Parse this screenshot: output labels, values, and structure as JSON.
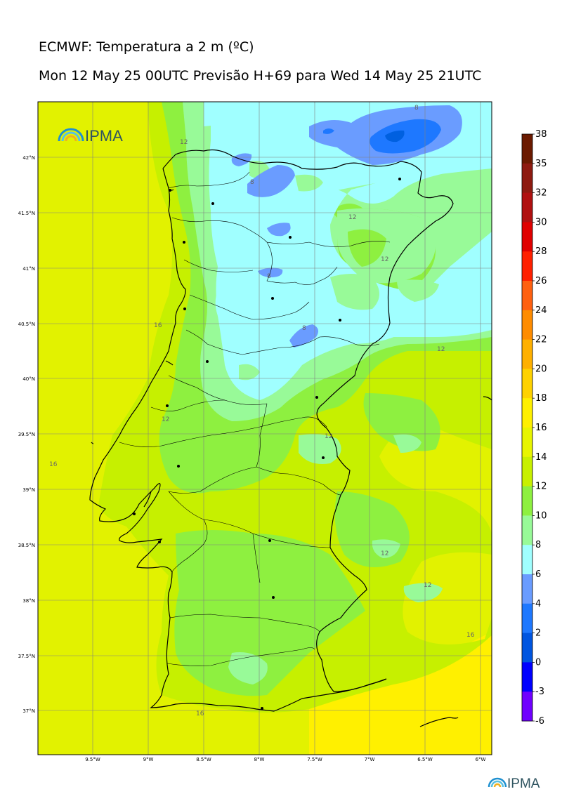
{
  "header": {
    "title": "ECMWF: Temperatura a 2 m (ºC)",
    "subtitle": "Mon 12 May 25 00UTC Previsão H+69 para Wed 14 May 25 21UTC"
  },
  "logo": {
    "text": "IPMA"
  },
  "axes": {
    "lon_labels": [
      "9.5°W",
      "9°W",
      "8.5°W",
      "8°W",
      "7.5°W",
      "7°W",
      "6.5°W",
      "6°W"
    ],
    "lat_labels": [
      "42°N",
      "41.5°N",
      "41°N",
      "40.5°N",
      "40°N",
      "39.5°N",
      "39°N",
      "38.5°N",
      "38°N",
      "37.5°N",
      "37°N"
    ]
  },
  "colorbar": {
    "levels": [
      "38",
      "35",
      "32",
      "30",
      "28",
      "26",
      "24",
      "22",
      "20",
      "18",
      "16",
      "14",
      "12",
      "10",
      "8",
      "6",
      "4",
      "2",
      "0",
      "-3",
      "-6"
    ],
    "colors": [
      "#6b1a00",
      "#8e1a10",
      "#b01010",
      "#e00000",
      "#ff2000",
      "#ff6010",
      "#ff8c00",
      "#ffb000",
      "#ffd200",
      "#fff000",
      "#e8f500",
      "#c8f000",
      "#8ef040",
      "#98fa98",
      "#a0ffff",
      "#6a9cff",
      "#1e78ff",
      "#0055e0",
      "#0000ff",
      "#7000ff",
      "#e000ff"
    ]
  },
  "contour_labels": {
    "c1": "12",
    "c2": "8",
    "c3": "12",
    "c4": "12",
    "c5": "8",
    "c6": "8",
    "c7": "12",
    "c8": "16",
    "c9": "12",
    "c10": "16",
    "c11": "12",
    "c12": "12",
    "c13": "12",
    "c14": "16",
    "c15": "16",
    "c16": "8"
  },
  "footer_logo": {
    "text": "IPMA"
  }
}
